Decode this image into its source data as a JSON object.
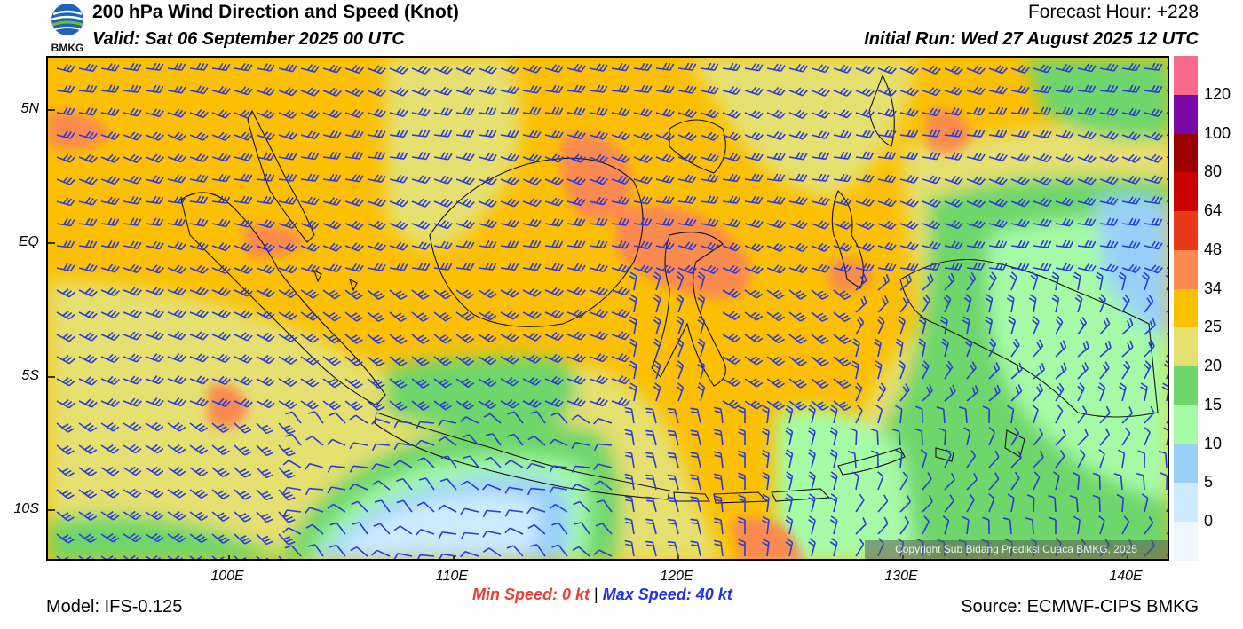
{
  "header": {
    "title": "200 hPa Wind Direction and Speed (Knot)",
    "valid": "Valid: Sat 06 September 2025 00 UTC",
    "forecast_hour": "Forecast Hour: +228",
    "initial_run": "Initial Run: Wed 27 August 2025 12 UTC"
  },
  "logo": {
    "text": "BMKG"
  },
  "map": {
    "lat_labels": [
      "5N",
      "EQ",
      "5S",
      "10S"
    ],
    "lon_labels": [
      "100E",
      "110E",
      "120E",
      "130E",
      "140E"
    ],
    "copyright": "Copyright Sub Bidang Prediksi Cuaca BMKG, 2025",
    "barb_color": "#2a3bd8"
  },
  "speed": {
    "min": "Min Speed:   0 kt",
    "separator": "|",
    "max": "Max Speed:  40 kt",
    "min_color": "#e8403a",
    "max_color": "#2233dd"
  },
  "footer": {
    "model": "Model: IFS-0.125",
    "source": "Source: ECMWF-CIPS BMKG"
  },
  "colorbar": {
    "labels": [
      "120",
      "100",
      "80",
      "64",
      "48",
      "34",
      "25",
      "20",
      "15",
      "10",
      "5",
      "0"
    ],
    "colors": [
      "#f96a8c",
      "#7a0aa8",
      "#9a0000",
      "#cc0000",
      "#e83a18",
      "#fa8a50",
      "#fcc000",
      "#e6e070",
      "#6ed66a",
      "#a6fca6",
      "#9ad0f8",
      "#cdebff",
      "#eef6ff"
    ]
  }
}
